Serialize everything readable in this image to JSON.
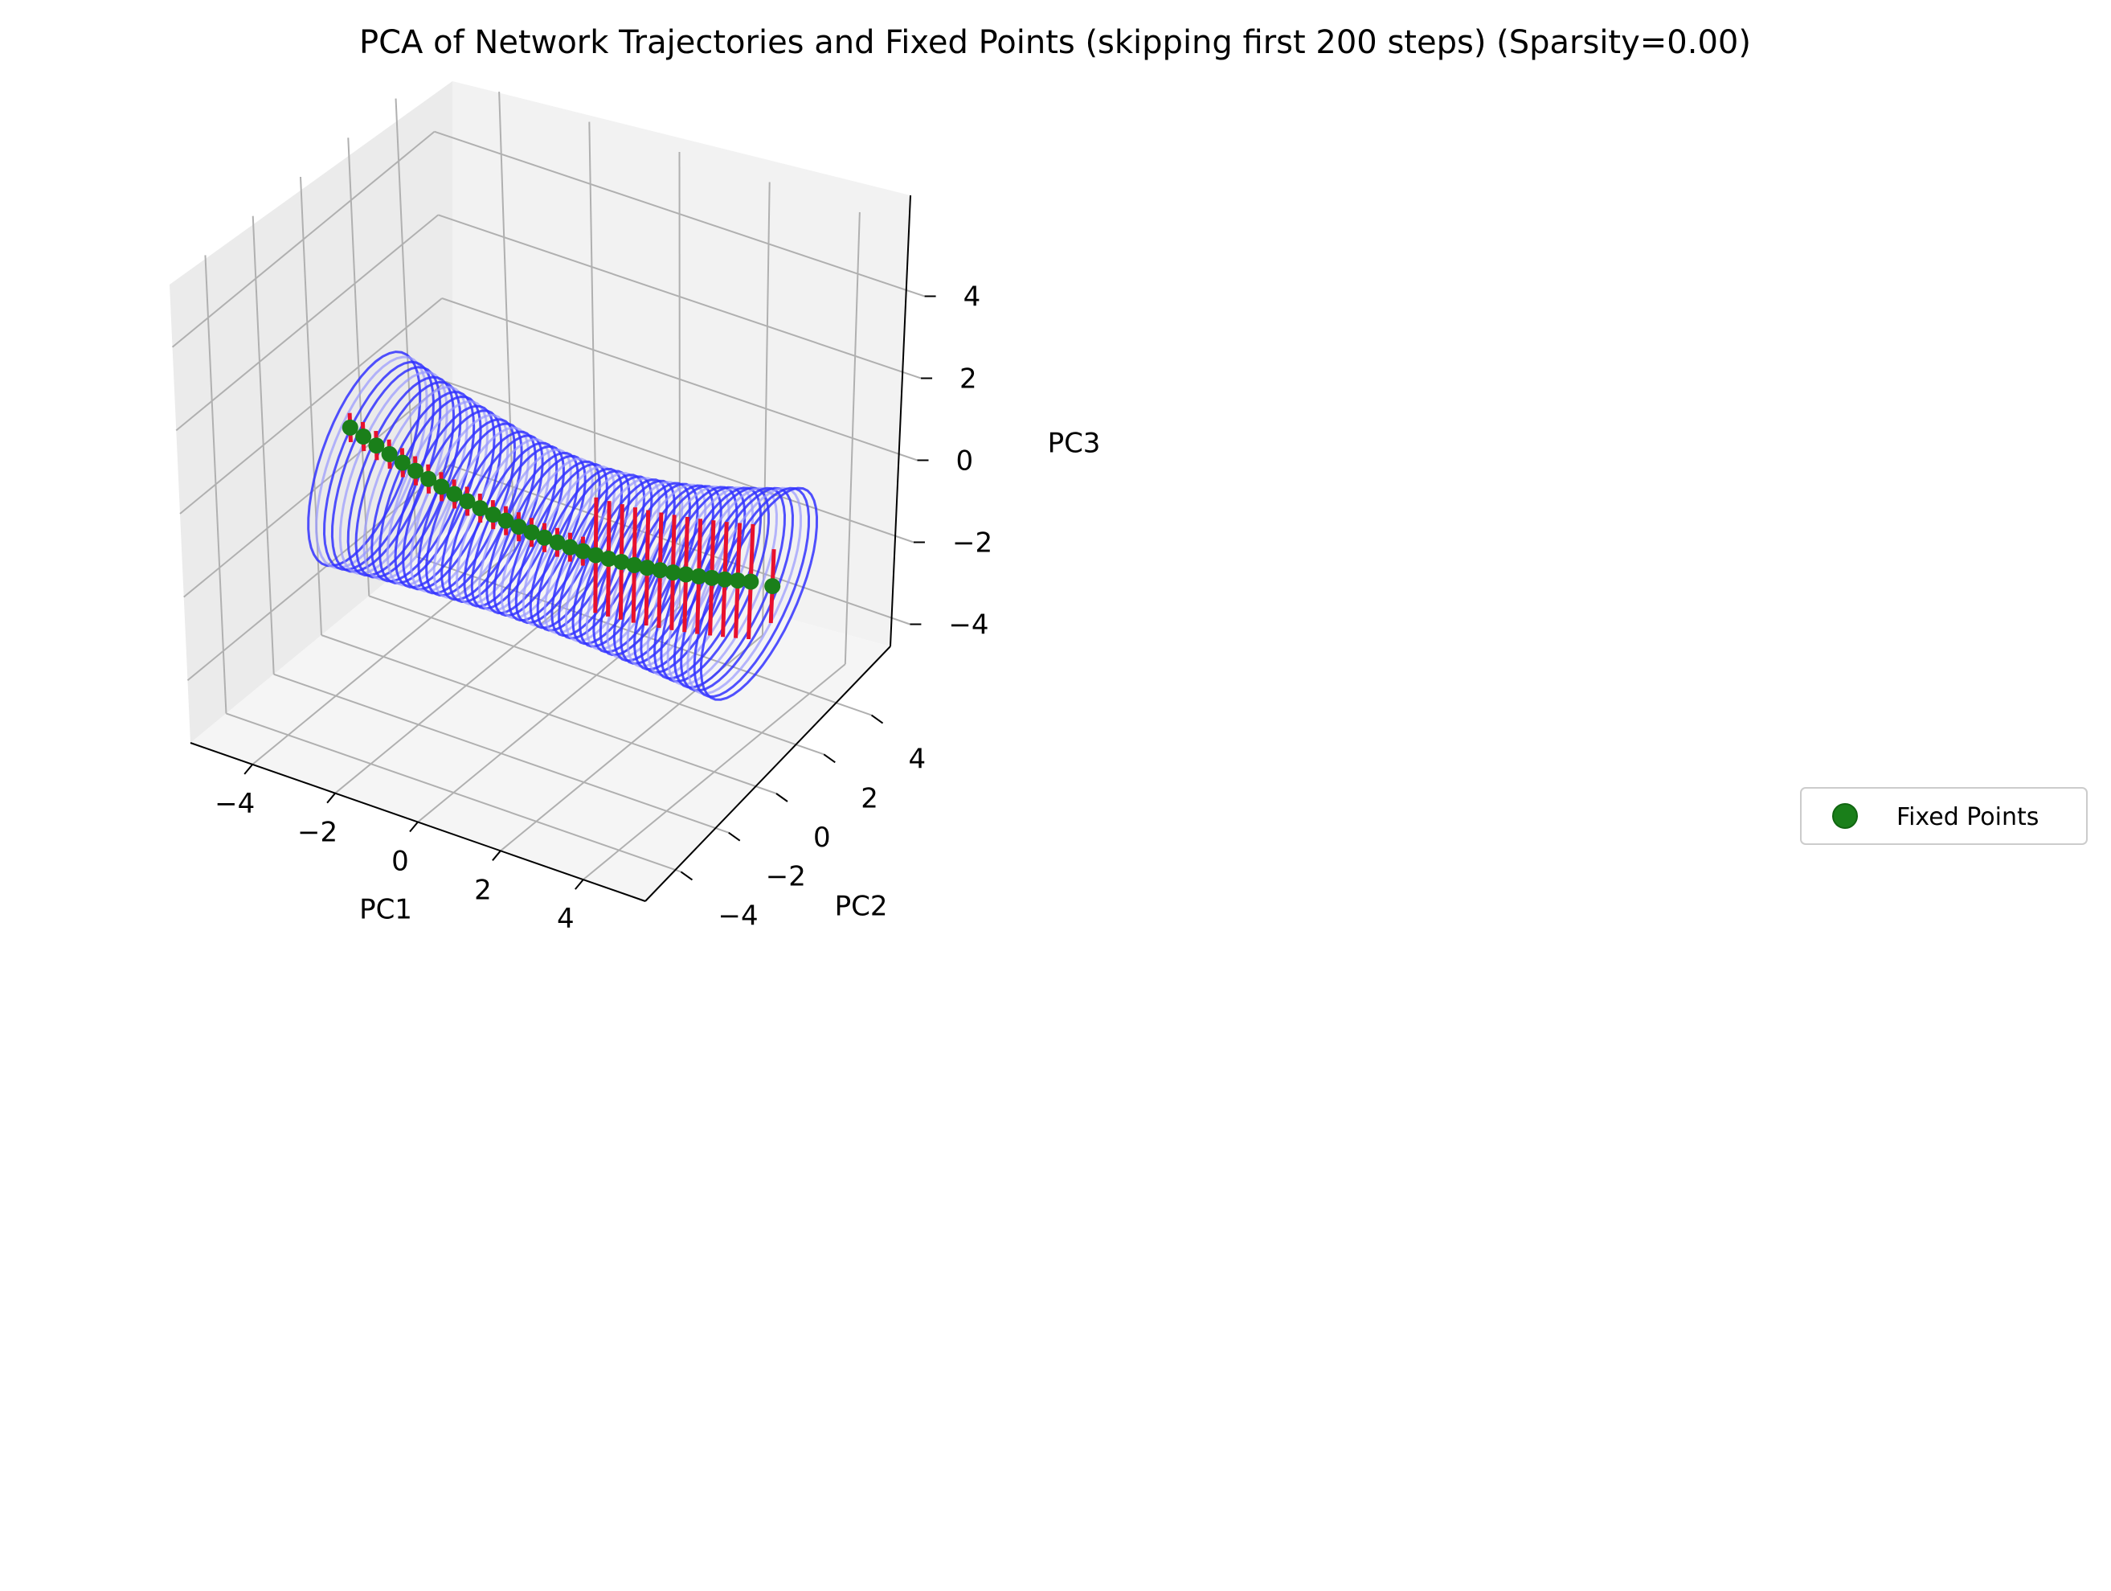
{
  "chart_data": {
    "type": "scatter",
    "projection": "3d",
    "title": "PCA of Network Trajectories and Fixed Points (skipping first 200 steps) (Sparsity=0.00)",
    "xlabel": "PC1",
    "ylabel": "PC2",
    "zlabel": "PC3",
    "xlim": [
      -5.5,
      5.5
    ],
    "ylim": [
      -5.5,
      5.5
    ],
    "zlim": [
      -5.5,
      5.5
    ],
    "xticks": [
      "−4",
      "−2",
      "0",
      "2",
      "4"
    ],
    "yticks": [
      "−4",
      "−2",
      "0",
      "2",
      "4"
    ],
    "zticks": [
      "−4",
      "−2",
      "0",
      "2",
      "4"
    ],
    "grid": true,
    "legend": {
      "placement": "right",
      "entries": [
        "Fixed Points"
      ]
    },
    "colors": {
      "trajectories": "#3333ff",
      "trajectories_light": "#9999ff",
      "fixed_point_directions": "#e8112d",
      "fixed_points": "#1a7f1a",
      "pane_back": "#f2f2f2",
      "pane_side": "#ebebeb",
      "pane_floor": "#f5f5f5",
      "grid": "#b0b0b0"
    },
    "series": [
      {
        "name": "Fixed Points",
        "marker": "circle",
        "x": [
          -4.6,
          -4.3,
          -4.0,
          -3.7,
          -3.4,
          -3.1,
          -2.8,
          -2.5,
          -2.2,
          -1.9,
          -1.6,
          -1.3,
          -1.0,
          -0.7,
          -0.4,
          -0.1,
          0.2,
          0.5,
          0.8,
          1.1,
          1.4,
          1.7,
          2.0,
          2.3,
          2.6,
          2.9,
          3.2,
          3.5,
          3.8,
          4.1,
          4.4,
          4.7,
          5.2
        ],
        "y": [
          0,
          0,
          0,
          0,
          0,
          0,
          0,
          0,
          0,
          0,
          0,
          0,
          0,
          0,
          0,
          0,
          0,
          0,
          0,
          0,
          0,
          0,
          0,
          0,
          0,
          0,
          0,
          0,
          0,
          0,
          0,
          0,
          0
        ],
        "z": [
          -0.2,
          -0.31,
          -0.42,
          -0.52,
          -0.62,
          -0.71,
          -0.8,
          -0.88,
          -0.95,
          -1.02,
          -1.08,
          -1.13,
          -1.17,
          -1.21,
          -1.24,
          -1.26,
          -1.27,
          -1.28,
          -1.27,
          -1.26,
          -1.24,
          -1.21,
          -1.18,
          -1.14,
          -1.09,
          -1.04,
          -0.98,
          -0.92,
          -0.85,
          -0.78,
          -0.7,
          -0.62,
          -0.55
        ]
      }
    ]
  }
}
